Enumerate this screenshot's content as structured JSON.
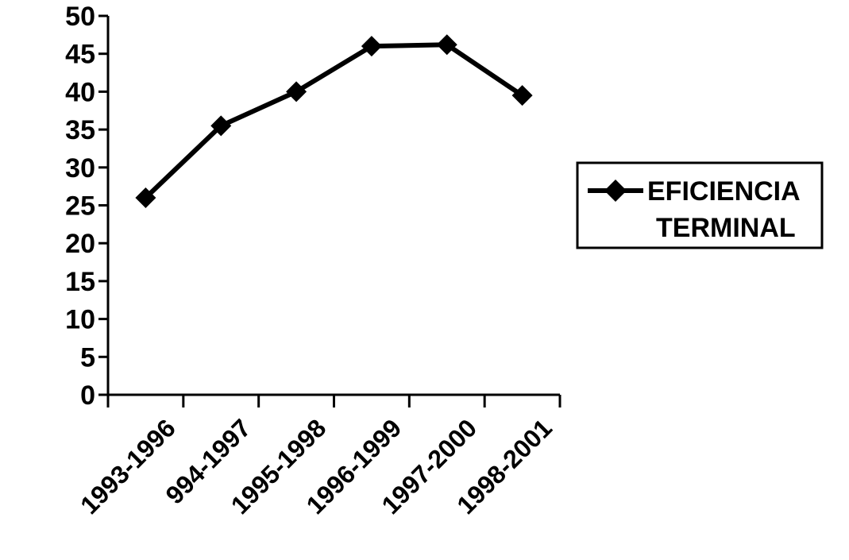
{
  "chart_data": {
    "type": "line",
    "categories": [
      "1993-1996",
      "994-1997",
      "1995-1998",
      "1996-1999",
      "1997-2000",
      "1998-2001"
    ],
    "series": [
      {
        "name": "EFICIENCIA TERMINAL",
        "values": [
          26,
          35.5,
          40,
          46,
          46.2,
          39.5
        ]
      }
    ],
    "title": "",
    "xlabel": "",
    "ylabel": "",
    "ylim": [
      0,
      50
    ],
    "yticks": [
      "0",
      "5",
      "10",
      "15",
      "20",
      "25",
      "30",
      "35",
      "40",
      "45",
      "50"
    ],
    "grid": false,
    "legend_position": "right",
    "legend_lines": [
      "EFICIENCIA",
      "TERMINAL"
    ],
    "marker": "diamond",
    "line_color": "#000000"
  }
}
